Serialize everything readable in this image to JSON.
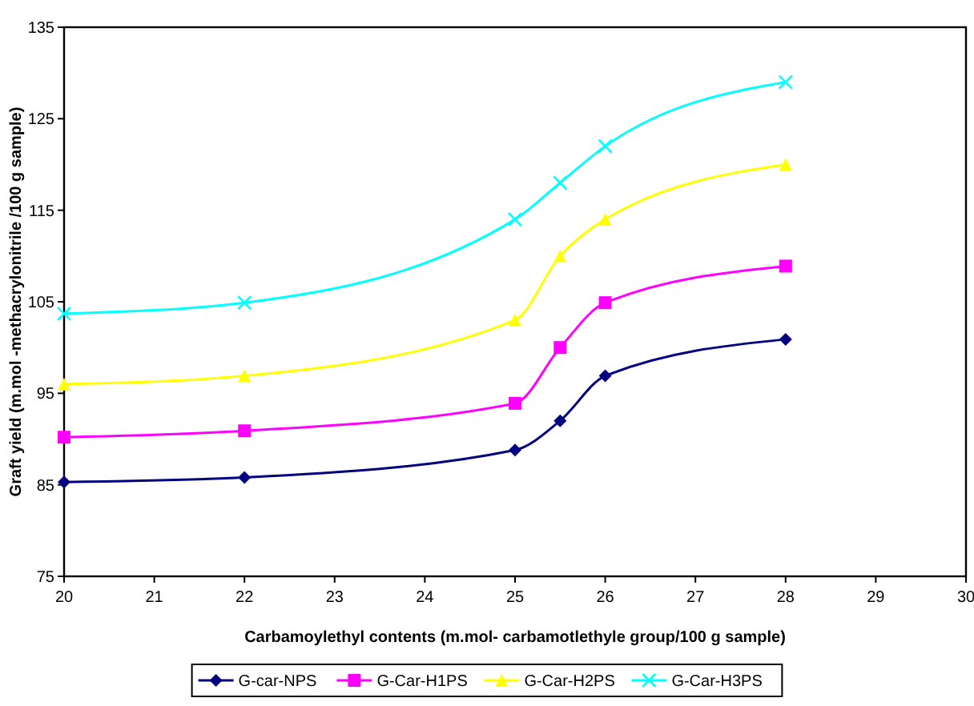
{
  "chart_data": {
    "type": "line",
    "xlabel": "Carbamoylethyl contents (m.mol- carbamotlethyle group/100 g sample)",
    "ylabel": "Graft yield (m.mol -methacrylonitrile /100 g sample)",
    "x": [
      20,
      22,
      25,
      25.5,
      26,
      28
    ],
    "series": [
      {
        "name": "G-car-NPS",
        "color": "#000080",
        "marker": "diamond",
        "values": [
          85.3,
          85.8,
          88.8,
          92,
          96.9,
          100.9
        ]
      },
      {
        "name": "G-Car-H1PS",
        "color": "#ff00ff",
        "marker": "square",
        "values": [
          90.2,
          90.9,
          93.9,
          100,
          104.9,
          108.9
        ]
      },
      {
        "name": "G-Car-H2PS",
        "color": "#ffff00",
        "marker": "triangle",
        "values": [
          96,
          96.9,
          103,
          110,
          114,
          120
        ]
      },
      {
        "name": "G-Car-H3PS",
        "color": "#00ffff",
        "marker": "cross",
        "values": [
          103.7,
          104.9,
          114,
          118,
          122,
          129
        ]
      }
    ],
    "xlim": [
      20,
      30
    ],
    "xticks": [
      20,
      21,
      22,
      23,
      24,
      25,
      26,
      27,
      28,
      29,
      30
    ],
    "ylim": [
      75,
      135
    ],
    "yticks": [
      75,
      85,
      95,
      105,
      115,
      125,
      135
    ],
    "grid": false,
    "legend": "bottom",
    "line_style": "solid"
  }
}
